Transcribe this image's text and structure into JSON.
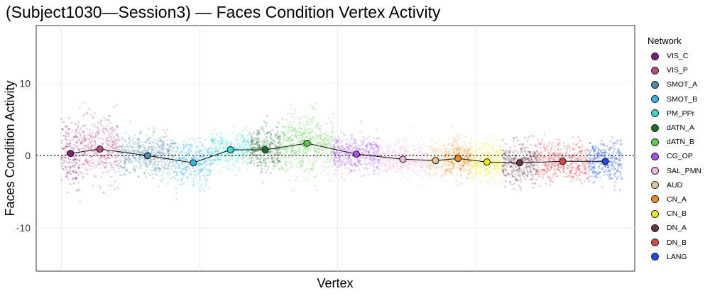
{
  "chart_data": {
    "type": "scatter",
    "title": "(Subject1030—Session3) — Faces Condition Vertex Activity",
    "xlabel": "Vertex",
    "ylabel": "Faces Condition Activity",
    "ylim": [
      -16,
      18
    ],
    "yticks": [
      "10",
      "0",
      "-10"
    ],
    "ytick_values": [
      10,
      0,
      -10
    ],
    "reference_line": 0,
    "grid": true,
    "legend_title": "Network",
    "legend_position": "right",
    "series": [
      {
        "name": "VIS_C",
        "color": "#7b1f7a",
        "x_range": [
          0,
          220
        ],
        "mean": 0.3,
        "spread": 3.0,
        "n": 180
      },
      {
        "name": "VIS_P",
        "color": "#b54c86",
        "x_range": [
          220,
          700
        ],
        "mean": 0.9,
        "spread": 2.8,
        "n": 420
      },
      {
        "name": "SMOT_A",
        "color": "#4d8aad",
        "x_range": [
          700,
          1360
        ],
        "mean": 0.0,
        "spread": 2.0,
        "n": 520
      },
      {
        "name": "SMOT_B",
        "color": "#33b5e5",
        "x_range": [
          1360,
          1790
        ],
        "mean": -1.0,
        "spread": 2.0,
        "n": 340
      },
      {
        "name": "PM_PPr",
        "color": "#3ad8d0",
        "x_range": [
          1790,
          2250
        ],
        "mean": 0.8,
        "spread": 1.6,
        "n": 340
      },
      {
        "name": "dATN_A",
        "color": "#1c6e2d",
        "x_range": [
          2250,
          2620
        ],
        "mean": 0.8,
        "spread": 2.0,
        "n": 340
      },
      {
        "name": "dATN_B",
        "color": "#5ccf4a",
        "x_range": [
          2620,
          3250
        ],
        "mean": 1.7,
        "spread": 2.6,
        "n": 520
      },
      {
        "name": "CG_OP",
        "color": "#a94ff0",
        "x_range": [
          3250,
          3800
        ],
        "mean": 0.2,
        "spread": 1.7,
        "n": 420
      },
      {
        "name": "SAL_PMN",
        "color": "#f7b6e0",
        "x_range": [
          3800,
          4360
        ],
        "mean": -0.5,
        "spread": 1.6,
        "n": 420
      },
      {
        "name": "AUD",
        "color": "#e3c79a",
        "x_range": [
          4360,
          4580
        ],
        "mean": -0.7,
        "spread": 1.6,
        "n": 200
      },
      {
        "name": "CN_A",
        "color": "#f38c1c",
        "x_range": [
          4580,
          4900
        ],
        "mean": -0.4,
        "spread": 1.8,
        "n": 300
      },
      {
        "name": "CN_B",
        "color": "#eded16",
        "x_range": [
          4900,
          5270
        ],
        "mean": -0.9,
        "spread": 1.7,
        "n": 300
      },
      {
        "name": "DN_A",
        "color": "#6b3444",
        "x_range": [
          5270,
          5680
        ],
        "mean": -1.0,
        "spread": 1.8,
        "n": 360
      },
      {
        "name": "DN_B",
        "color": "#d94448",
        "x_range": [
          5680,
          6300
        ],
        "mean": -0.8,
        "spread": 1.8,
        "n": 480
      },
      {
        "name": "LANG",
        "color": "#1a4cf0",
        "x_range": [
          6300,
          6700
        ],
        "mean": -0.8,
        "spread": 1.8,
        "n": 320
      }
    ],
    "x_extent": [
      -300,
      6850
    ],
    "x_gridlines": [
      0,
      1650,
      3300,
      4950
    ]
  }
}
